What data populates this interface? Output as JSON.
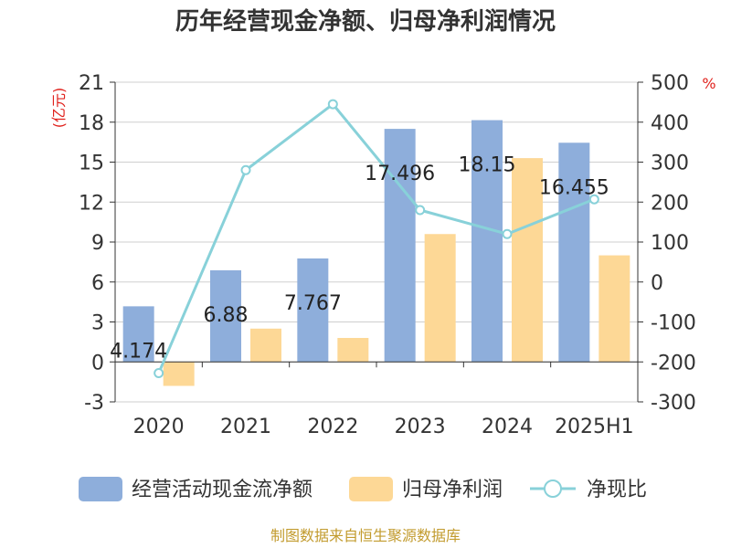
{
  "chart_data": {
    "type": "bar",
    "title": "历年经营现金净额、归母净利润情况",
    "categories": [
      "2020",
      "2021",
      "2022",
      "2023",
      "2024",
      "2025H1"
    ],
    "y_left": {
      "unit": "(亿元)",
      "ylim": [
        -3,
        21
      ],
      "ticks": [
        -3,
        0,
        3,
        6,
        9,
        12,
        15,
        18,
        21
      ]
    },
    "y_right": {
      "unit": "%",
      "ylim": [
        -300,
        500
      ],
      "ticks": [
        -300,
        -200,
        -100,
        0,
        100,
        200,
        300,
        400,
        500
      ]
    },
    "series": [
      {
        "name": "经营活动现金流净额",
        "type": "bar",
        "axis": "left",
        "color": "#8eaedb",
        "values": [
          4.174,
          6.88,
          7.767,
          17.496,
          18.15,
          16.455
        ],
        "labels": [
          "4.174",
          "6.88",
          "7.767",
          "17.496",
          "18.15",
          "16.455"
        ]
      },
      {
        "name": "归母净利润",
        "type": "bar",
        "axis": "left",
        "color": "#fdd896",
        "values": [
          -1.8,
          2.5,
          1.8,
          9.6,
          15.3,
          8.0
        ]
      },
      {
        "name": "净现比",
        "type": "line",
        "axis": "right",
        "color": "#88d1d9",
        "values": [
          -228,
          280,
          445,
          180,
          120,
          207
        ]
      }
    ],
    "grid": true,
    "legend": "bottom"
  },
  "source": "制图数据来自恒生聚源数据库"
}
